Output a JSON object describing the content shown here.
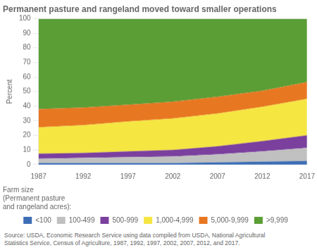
{
  "chart_data": {
    "type": "area",
    "stacked": true,
    "title": "Permanent pasture and rangeland moved toward smaller operations",
    "ylabel": "Percent",
    "legend_title": "Farm size\n(Permanent pasture\nand rangeland acres):",
    "source": "Source: USDA, Economic Research Service using data compiled from USDA, National Agricultural\nStatistics Service, Census of Agriculture, 1987, 1992, 1997, 2002, 2007, 2012, and 2017.",
    "x": [
      1987,
      1992,
      1997,
      2002,
      2007,
      2012,
      2017
    ],
    "xlim": [
      1987,
      2017
    ],
    "xticks": [
      1987,
      1992,
      1997,
      2002,
      2007,
      2012,
      2017
    ],
    "ylim": [
      0,
      100
    ],
    "yticks": [
      0,
      10,
      20,
      30,
      40,
      50,
      60,
      70,
      80,
      90,
      100
    ],
    "grid": true,
    "legend": "bottom",
    "series": [
      {
        "name": "<100",
        "color": "#3d6eb5",
        "values": [
          1.0,
          1.0,
          1.0,
          1.0,
          1.5,
          2.0,
          2.5
        ]
      },
      {
        "name": "100-499",
        "color": "#c0c0c0",
        "values": [
          3.0,
          3.5,
          4.0,
          4.5,
          5.5,
          7.0,
          9.0
        ]
      },
      {
        "name": "500-999",
        "color": "#7b3f9e",
        "values": [
          3.5,
          3.5,
          4.0,
          4.5,
          5.5,
          7.0,
          8.5
        ]
      },
      {
        "name": "1,000-4,999",
        "color": "#f5e642",
        "values": [
          18.0,
          19.0,
          20.5,
          21.5,
          22.5,
          23.5,
          25.0
        ]
      },
      {
        "name": "5,000-9,999",
        "color": "#e87722",
        "values": [
          12.5,
          12.0,
          11.5,
          11.5,
          11.5,
          11.0,
          11.5
        ]
      },
      {
        "name": ">9,999",
        "color": "#5a9e35",
        "values": [
          62.0,
          61.0,
          59.0,
          57.0,
          53.5,
          49.5,
          43.5
        ]
      }
    ]
  }
}
